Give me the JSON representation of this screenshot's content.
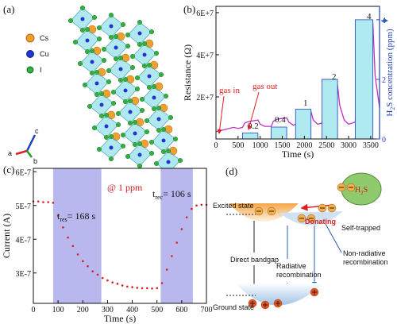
{
  "panel_a": {
    "label": "(a)",
    "legend": [
      "Cs",
      "Cu",
      "I"
    ],
    "axes": [
      "a",
      "b",
      "c"
    ]
  },
  "chart_data": [
    {
      "type": "line",
      "panel_label": "(b)",
      "xlabel": "Time (s)",
      "ylabel": "Resistance (Ω)",
      "y2label": [
        "H",
        "2",
        "S concentration (ppm)"
      ],
      "xlim": [
        0,
        3700
      ],
      "xticks": [
        0,
        500,
        1000,
        1500,
        2000,
        2500,
        3000,
        3500
      ],
      "ylim": [
        0,
        63000000
      ],
      "yticks": [
        {
          "value": 20000000,
          "label": "2E+7"
        },
        {
          "value": 40000000,
          "label": "4E+7"
        },
        {
          "value": 60000000,
          "label": "6E+7"
        }
      ],
      "y2lim": [
        0,
        4.45
      ],
      "y2ticks": [
        0,
        2,
        4
      ],
      "series": [
        {
          "color": "#c030c0",
          "x": [
            0,
            100,
            200,
            300,
            400,
            500,
            600,
            650,
            700,
            800,
            950,
            1000,
            1100,
            1250,
            1300,
            1400,
            1600,
            1650,
            1750,
            1800,
            1850,
            1950,
            2150,
            2200,
            2300,
            2400,
            2450,
            2550,
            2750,
            2800,
            2900,
            3000,
            3150,
            3200,
            3300,
            3400,
            3550,
            3600,
            3700
          ],
          "values": [
            3500000,
            4000000,
            4500000,
            5000000,
            5500000,
            5000000,
            5500000,
            7500000,
            8000000,
            8500000,
            9000000,
            7000000,
            6000000,
            6000000,
            8500000,
            9500000,
            10000000,
            8000000,
            6500000,
            7000000,
            11000000,
            12500000,
            13000000,
            9000000,
            7000000,
            7500000,
            18000000,
            23000000,
            25500000,
            16000000,
            9000000,
            7000000,
            8000000,
            35000000,
            50000000,
            54000000,
            55000000,
            30000000,
            15000000
          ]
        },
        {
          "color": "#1f3fbf",
          "fill": "#aeeaf0",
          "axis": "y2",
          "x": [
            0,
            600,
            600,
            950,
            950,
            1250,
            1250,
            1600,
            1600,
            1800,
            1800,
            2150,
            2150,
            2400,
            2400,
            2750,
            2750,
            3150,
            3150,
            3550,
            3550,
            3700
          ],
          "values": [
            0,
            0,
            0.2,
            0.2,
            0,
            0,
            0.4,
            0.4,
            0,
            0,
            1,
            1,
            0,
            0,
            2,
            2,
            0,
            0,
            4,
            4,
            0,
            0
          ]
        }
      ],
      "annotations": [
        "gas in",
        "gas out",
        "0.2",
        "0.4",
        "1",
        "2",
        "4"
      ]
    },
    {
      "type": "scatter",
      "panel_label": "(c)",
      "xlabel": "Time (s)",
      "ylabel": "Current (A)",
      "xlim": [
        0,
        700
      ],
      "xticks": [
        0,
        100,
        200,
        300,
        400,
        500,
        600,
        700
      ],
      "ylim": [
        2.1e-07,
        6.1e-07
      ],
      "yticks": [
        {
          "value": 3e-07,
          "label": "3E-7"
        },
        {
          "value": 4e-07,
          "label": "4E-7"
        },
        {
          "value": 5e-07,
          "label": "5E-7"
        },
        {
          "value": 6e-07,
          "label": "6E-7"
        }
      ],
      "shaded": [
        [
          80,
          275
        ],
        [
          515,
          645
        ]
      ],
      "shade_color": "#b8b8ee",
      "color": "#d42020",
      "x": [
        0,
        20,
        40,
        60,
        80,
        100,
        120,
        140,
        160,
        180,
        200,
        220,
        240,
        260,
        280,
        300,
        320,
        340,
        360,
        380,
        400,
        420,
        440,
        460,
        480,
        500,
        520,
        540,
        560,
        580,
        600,
        620,
        640,
        660,
        680,
        700
      ],
      "values": [
        5.12e-07,
        5.12e-07,
        5.1e-07,
        5.1e-07,
        5.08e-07,
        4.7e-07,
        4.35e-07,
        4.05e-07,
        3.8e-07,
        3.55e-07,
        3.35e-07,
        3.2e-07,
        3.05e-07,
        2.95e-07,
        2.85e-07,
        2.78e-07,
        2.72e-07,
        2.68e-07,
        2.63e-07,
        2.6e-07,
        2.58e-07,
        2.56e-07,
        2.55e-07,
        2.55e-07,
        2.54e-07,
        2.55e-07,
        2.7e-07,
        3.1e-07,
        3.5e-07,
        3.9e-07,
        4.3e-07,
        4.65e-07,
        4.9e-07,
        5e-07,
        5.02e-07,
        5.02e-07
      ],
      "annotation": "@ 1 ppm",
      "t_res": [
        "t",
        "res",
        "= 168 s"
      ],
      "t_rec": [
        "t",
        "rec",
        "= 106 s"
      ]
    }
  ],
  "panel_d": {
    "label": "(d)",
    "gas": [
      "H",
      "2",
      "S"
    ],
    "donating": "Donating",
    "excited_state": "Excited state",
    "self_trapped": "Self-trapped",
    "non_radiative": [
      "Non-radiative",
      "recombination"
    ],
    "direct_bandgap": "Direct bandgap",
    "radiative": [
      "Radiative",
      "recombination"
    ],
    "ground_state": "Ground state"
  }
}
